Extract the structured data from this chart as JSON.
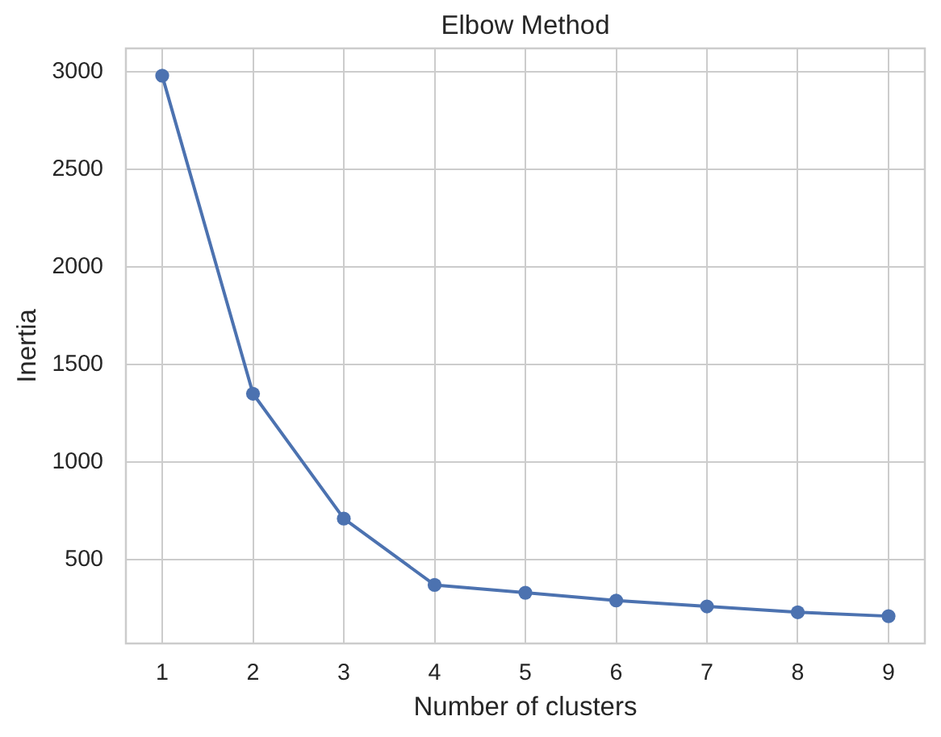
{
  "chart_data": {
    "type": "line",
    "title": "Elbow Method",
    "xlabel": "Number of clusters",
    "ylabel": "Inertia",
    "x": [
      1,
      2,
      3,
      4,
      5,
      6,
      7,
      8,
      9
    ],
    "series": [
      {
        "color": "#4c72b0",
        "values": [
          2980,
          1350,
          710,
          370,
          330,
          290,
          260,
          230,
          210
        ]
      }
    ],
    "xlim": [
      0.6,
      9.4
    ],
    "ylim": [
      70,
      3120
    ],
    "xticks": [
      1,
      2,
      3,
      4,
      5,
      6,
      7,
      8,
      9
    ],
    "yticks": [
      500,
      1000,
      1500,
      2000,
      2500,
      3000
    ],
    "grid": true,
    "marker": "circle",
    "line_style": "solid"
  }
}
